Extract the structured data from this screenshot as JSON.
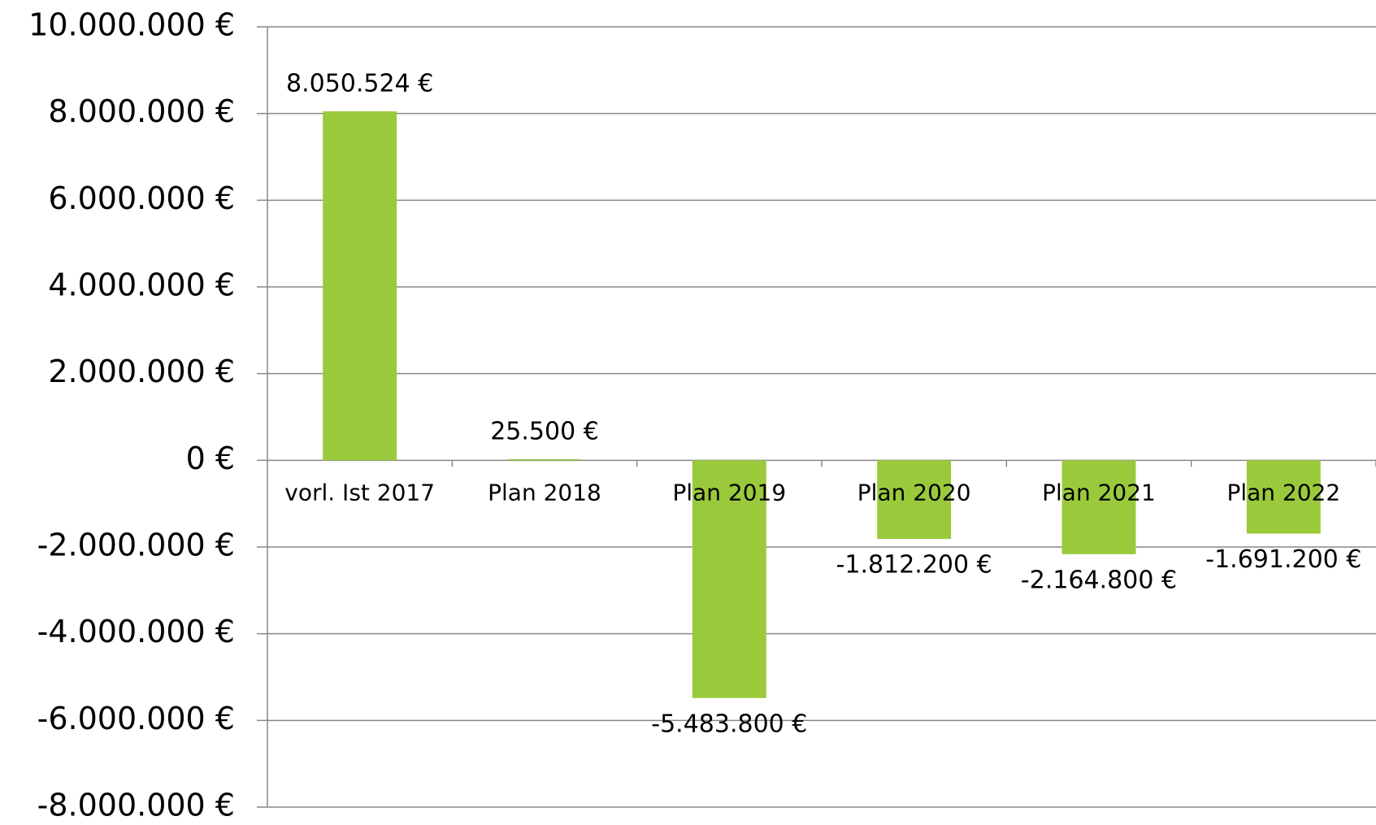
{
  "chart_data": {
    "type": "bar",
    "categories": [
      "vorl. Ist 2017",
      "Plan 2018",
      "Plan 2019",
      "Plan 2020",
      "Plan 2021",
      "Plan 2022"
    ],
    "values": [
      8050524,
      25500,
      -5483800,
      -1812200,
      -2164800,
      -1691200
    ],
    "value_labels": [
      "8.050.524 €",
      "25.500 €",
      "-5.483.800 €",
      "-1.812.200 €",
      "-2.164.800 €",
      "-1.691.200 €"
    ],
    "color": "#9aca3c",
    "ylim": [
      -8000000,
      10000000
    ],
    "yticks": [
      {
        "value": -8000000,
        "label": "-8.000.000 €"
      },
      {
        "value": -6000000,
        "label": "-6.000.000 €"
      },
      {
        "value": -4000000,
        "label": "-4.000.000 €"
      },
      {
        "value": -2000000,
        "label": "-2.000.000 €"
      },
      {
        "value": 0,
        "label": "0 €"
      },
      {
        "value": 2000000,
        "label": "2.000.000 €"
      },
      {
        "value": 4000000,
        "label": "4.000.000 €"
      },
      {
        "value": 6000000,
        "label": "6.000.000 €"
      },
      {
        "value": 8000000,
        "label": "8.000.000 €"
      },
      {
        "value": 10000000,
        "label": "10.000.000 €"
      }
    ],
    "grid": true
  }
}
